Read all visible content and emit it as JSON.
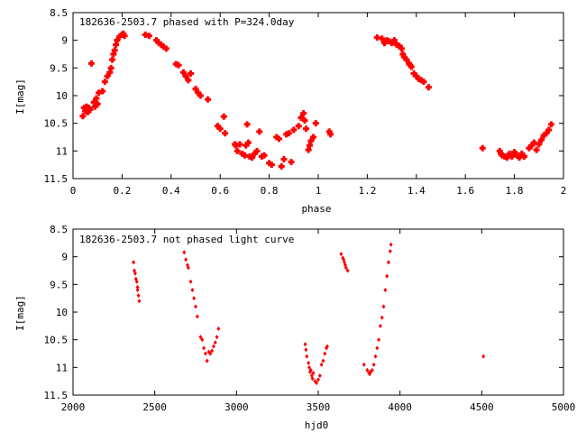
{
  "chart_data": [
    {
      "type": "scatter",
      "title": "182636-2503.7 phased with P=324.0day",
      "xlabel": "phase",
      "ylabel": "I[mag]",
      "xlim": [
        0,
        2
      ],
      "ylim": [
        11.5,
        8.5
      ],
      "y_inverted": true,
      "xticks": [
        "0",
        "0.2",
        "0.4",
        "0.6",
        "0.8",
        "1",
        "1.2",
        "1.4",
        "1.6",
        "1.8",
        "2"
      ],
      "yticks": [
        "8.5",
        "9",
        "9.5",
        "10",
        "10.5",
        "11",
        "11.5"
      ],
      "marker": "filled-plus",
      "color": "#ff0000",
      "grid": false,
      "series": [
        {
          "points": [
            [
              0.04,
              10.37
            ],
            [
              0.045,
              10.22
            ],
            [
              0.05,
              10.28
            ],
            [
              0.055,
              10.2
            ],
            [
              0.06,
              10.3
            ],
            [
              0.065,
              10.22
            ],
            [
              0.07,
              10.25
            ],
            [
              0.075,
              9.42
            ],
            [
              0.085,
              10.12
            ],
            [
              0.09,
              10.2
            ],
            [
              0.095,
              10.05
            ],
            [
              0.1,
              10.15
            ],
            [
              0.105,
              9.95
            ],
            [
              0.12,
              9.92
            ],
            [
              0.13,
              9.75
            ],
            [
              0.14,
              9.65
            ],
            [
              0.15,
              9.58
            ],
            [
              0.155,
              9.5
            ],
            [
              0.16,
              9.35
            ],
            [
              0.165,
              9.25
            ],
            [
              0.17,
              9.18
            ],
            [
              0.175,
              9.08
            ],
            [
              0.18,
              9.0
            ],
            [
              0.19,
              8.93
            ],
            [
              0.2,
              8.9
            ],
            [
              0.205,
              8.88
            ],
            [
              0.21,
              8.92
            ],
            [
              0.295,
              8.9
            ],
            [
              0.31,
              8.92
            ],
            [
              0.34,
              9.0
            ],
            [
              0.35,
              9.05
            ],
            [
              0.36,
              9.08
            ],
            [
              0.37,
              9.12
            ],
            [
              0.38,
              9.15
            ],
            [
              0.42,
              9.43
            ],
            [
              0.43,
              9.45
            ],
            [
              0.45,
              9.58
            ],
            [
              0.46,
              9.65
            ],
            [
              0.47,
              9.72
            ],
            [
              0.48,
              9.6
            ],
            [
              0.5,
              9.88
            ],
            [
              0.51,
              9.95
            ],
            [
              0.52,
              10.0
            ],
            [
              0.55,
              10.07
            ],
            [
              0.59,
              10.55
            ],
            [
              0.6,
              10.6
            ],
            [
              0.615,
              10.38
            ],
            [
              0.62,
              10.68
            ],
            [
              0.66,
              10.88
            ],
            [
              0.665,
              10.9
            ],
            [
              0.67,
              11.0
            ],
            [
              0.68,
              10.88
            ],
            [
              0.69,
              11.05
            ],
            [
              0.7,
              11.08
            ],
            [
              0.705,
              10.9
            ],
            [
              0.71,
              10.52
            ],
            [
              0.715,
              10.85
            ],
            [
              0.72,
              11.1
            ],
            [
              0.73,
              11.12
            ],
            [
              0.74,
              11.05
            ],
            [
              0.75,
              11.0
            ],
            [
              0.76,
              10.65
            ],
            [
              0.77,
              11.1
            ],
            [
              0.78,
              11.08
            ],
            [
              0.8,
              11.22
            ],
            [
              0.81,
              11.25
            ],
            [
              0.83,
              10.75
            ],
            [
              0.84,
              10.78
            ],
            [
              0.85,
              11.28
            ],
            [
              0.86,
              11.15
            ],
            [
              0.87,
              10.7
            ],
            [
              0.88,
              10.68
            ],
            [
              0.89,
              11.2
            ],
            [
              0.9,
              10.62
            ],
            [
              0.92,
              10.55
            ],
            [
              0.93,
              10.4
            ],
            [
              0.94,
              10.32
            ],
            [
              0.945,
              10.45
            ],
            [
              0.95,
              10.6
            ],
            [
              0.96,
              10.98
            ],
            [
              0.965,
              10.9
            ],
            [
              0.97,
              10.82
            ],
            [
              0.98,
              10.75
            ],
            [
              0.99,
              10.5
            ],
            [
              1.045,
              10.65
            ],
            [
              1.05,
              10.7
            ],
            [
              1.24,
              8.95
            ],
            [
              1.26,
              8.97
            ],
            [
              1.27,
              9.05
            ],
            [
              1.28,
              9.0
            ],
            [
              1.29,
              9.02
            ],
            [
              1.3,
              9.05
            ],
            [
              1.31,
              9.0
            ],
            [
              1.32,
              9.08
            ],
            [
              1.33,
              9.1
            ],
            [
              1.34,
              9.15
            ],
            [
              1.345,
              9.25
            ],
            [
              1.35,
              9.3
            ],
            [
              1.36,
              9.35
            ],
            [
              1.37,
              9.42
            ],
            [
              1.375,
              9.45
            ],
            [
              1.38,
              9.48
            ],
            [
              1.39,
              9.6
            ],
            [
              1.4,
              9.65
            ],
            [
              1.41,
              9.7
            ],
            [
              1.42,
              9.72
            ],
            [
              1.43,
              9.75
            ],
            [
              1.45,
              9.85
            ],
            [
              1.67,
              10.95
            ],
            [
              1.74,
              11.0
            ],
            [
              1.745,
              11.05
            ],
            [
              1.75,
              11.08
            ],
            [
              1.76,
              11.1
            ],
            [
              1.77,
              11.12
            ],
            [
              1.78,
              11.05
            ],
            [
              1.79,
              11.1
            ],
            [
              1.8,
              11.02
            ],
            [
              1.81,
              11.08
            ],
            [
              1.82,
              11.12
            ],
            [
              1.83,
              11.05
            ],
            [
              1.84,
              11.1
            ],
            [
              1.86,
              10.95
            ],
            [
              1.87,
              10.9
            ],
            [
              1.88,
              10.85
            ],
            [
              1.89,
              10.98
            ],
            [
              1.9,
              10.88
            ],
            [
              1.91,
              10.8
            ],
            [
              1.92,
              10.72
            ],
            [
              1.93,
              10.68
            ],
            [
              1.94,
              10.62
            ],
            [
              1.95,
              10.52
            ]
          ]
        }
      ]
    },
    {
      "type": "scatter",
      "title": "182636-2503.7 not phased light curve",
      "xlabel": "hjd0",
      "ylabel": "I[mag]",
      "xlim": [
        2000,
        5000
      ],
      "ylim": [
        11.5,
        8.5
      ],
      "y_inverted": true,
      "xticks": [
        "2000",
        "2500",
        "3000",
        "3500",
        "4000",
        "4500",
        "5000"
      ],
      "yticks": [
        "8.5",
        "9",
        "9.5",
        "10",
        "10.5",
        "11",
        "11.5"
      ],
      "marker": "filled-diamond",
      "color": "#ff0000",
      "grid": false,
      "series": [
        {
          "points": [
            [
              2370,
              9.1
            ],
            [
              2375,
              9.25
            ],
            [
              2380,
              9.3
            ],
            [
              2385,
              9.4
            ],
            [
              2390,
              9.45
            ],
            [
              2395,
              9.6
            ],
            [
              2400,
              9.7
            ],
            [
              2405,
              9.8
            ],
            [
              2395,
              9.55
            ],
            [
              2680,
              8.92
            ],
            [
              2690,
              9.05
            ],
            [
              2700,
              9.15
            ],
            [
              2705,
              9.2
            ],
            [
              2720,
              9.45
            ],
            [
              2730,
              9.6
            ],
            [
              2740,
              9.75
            ],
            [
              2750,
              9.9
            ],
            [
              2760,
              10.08
            ],
            [
              2780,
              10.45
            ],
            [
              2790,
              10.5
            ],
            [
              2800,
              10.65
            ],
            [
              2810,
              10.75
            ],
            [
              2820,
              10.88
            ],
            [
              2830,
              10.72
            ],
            [
              2840,
              10.75
            ],
            [
              2850,
              10.7
            ],
            [
              2860,
              10.62
            ],
            [
              2870,
              10.55
            ],
            [
              2880,
              10.45
            ],
            [
              2890,
              10.3
            ],
            [
              3420,
              10.58
            ],
            [
              3425,
              10.68
            ],
            [
              3430,
              10.8
            ],
            [
              3440,
              10.92
            ],
            [
              3445,
              11.0
            ],
            [
              3450,
              11.08
            ],
            [
              3455,
              11.05
            ],
            [
              3460,
              11.15
            ],
            [
              3465,
              11.2
            ],
            [
              3470,
              11.1
            ],
            [
              3480,
              11.25
            ],
            [
              3490,
              11.28
            ],
            [
              3500,
              11.22
            ],
            [
              3510,
              11.15
            ],
            [
              3520,
              10.95
            ],
            [
              3530,
              10.88
            ],
            [
              3540,
              10.75
            ],
            [
              3550,
              10.65
            ],
            [
              3555,
              10.62
            ],
            [
              3640,
              8.95
            ],
            [
              3650,
              9.02
            ],
            [
              3655,
              9.05
            ],
            [
              3660,
              9.1
            ],
            [
              3665,
              9.15
            ],
            [
              3670,
              9.2
            ],
            [
              3680,
              9.25
            ],
            [
              3780,
              10.95
            ],
            [
              3800,
              11.05
            ],
            [
              3810,
              11.1
            ],
            [
              3815,
              11.12
            ],
            [
              3820,
              11.08
            ],
            [
              3830,
              11.05
            ],
            [
              3840,
              10.95
            ],
            [
              3850,
              10.8
            ],
            [
              3860,
              10.65
            ],
            [
              3870,
              10.5
            ],
            [
              3880,
              10.25
            ],
            [
              3890,
              10.1
            ],
            [
              3900,
              9.9
            ],
            [
              3910,
              9.6
            ],
            [
              3920,
              9.35
            ],
            [
              3930,
              9.1
            ],
            [
              3940,
              8.9
            ],
            [
              3945,
              8.78
            ],
            [
              4510,
              10.8
            ]
          ]
        }
      ]
    }
  ]
}
